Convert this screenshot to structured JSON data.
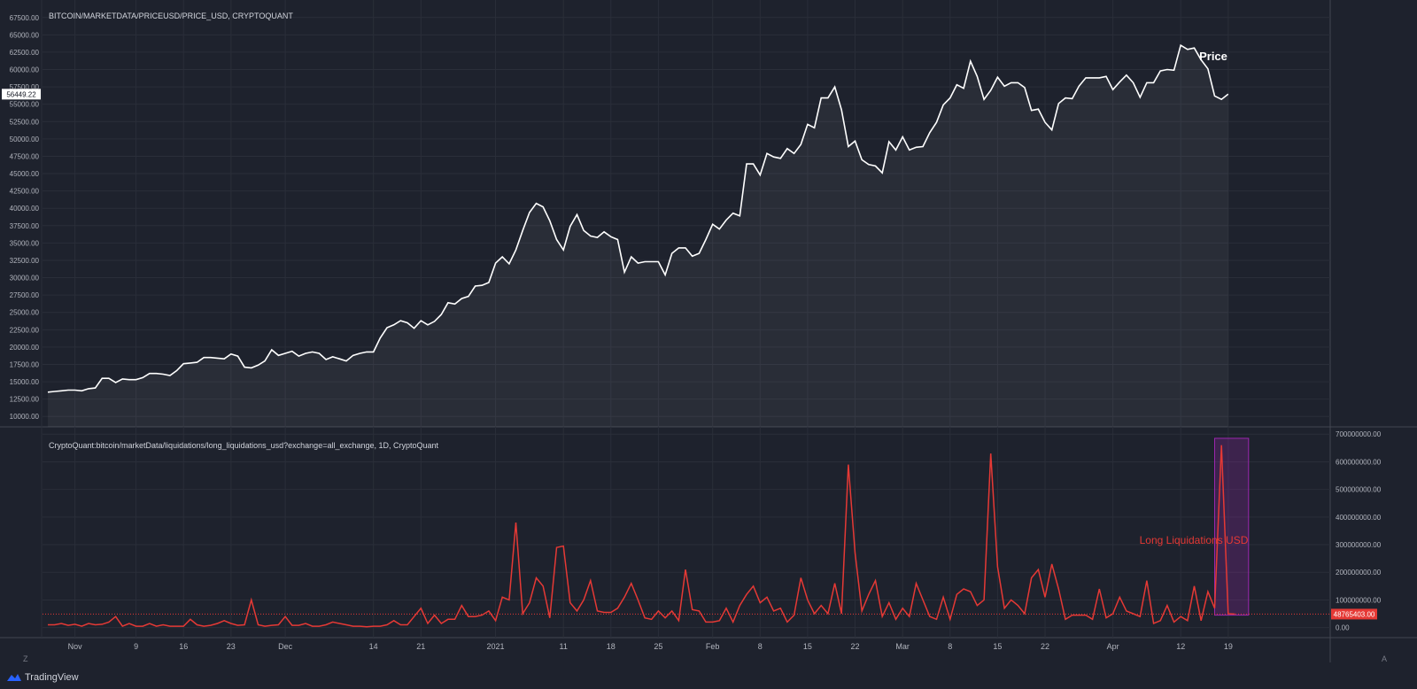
{
  "branding": {
    "name": "TradingView"
  },
  "controls": {
    "timezone_label": "Z",
    "auto_scale_label": "A"
  },
  "x_axis": {
    "labels": [
      "Nov",
      "9",
      "16",
      "23",
      "Dec",
      "14",
      "21",
      "2021",
      "11",
      "18",
      "25",
      "Feb",
      "8",
      "15",
      "22",
      "Mar",
      "8",
      "15",
      "22",
      "Apr",
      "12",
      "19"
    ]
  },
  "colors": {
    "background": "#1e222d",
    "grid": "#2a2e39",
    "price": "#ffffff",
    "liquidations": "#e53935",
    "highlight": "#9c27b0"
  },
  "chart_data": [
    {
      "type": "line",
      "title": "BITCOIN/MARKETDATA/PRICEUSD/PRICE_USD, CRYPTOQUANT",
      "annotation": "Price",
      "last_value_label": "56449.22",
      "y_ticks": [
        "67500.00",
        "65000.00",
        "62500.00",
        "60000.00",
        "57500.00",
        "55000.00",
        "52500.00",
        "50000.00",
        "47500.00",
        "45000.00",
        "42500.00",
        "40000.00",
        "37500.00",
        "35000.00",
        "32500.00",
        "30000.00",
        "27500.00",
        "25000.00",
        "22500.00",
        "20000.00",
        "17500.00",
        "15000.00",
        "12500.00",
        "10000.00"
      ],
      "ylim": [
        8500,
        69000
      ],
      "grid": true,
      "series": [
        {
          "x_start": "2020-10-27",
          "x_step_days": 1,
          "values": [
            13500,
            13600,
            13700,
            13800,
            13800,
            13700,
            14000,
            14100,
            15500,
            15500,
            14900,
            15400,
            15300,
            15300,
            15600,
            16200,
            16200,
            16100,
            15900,
            16600,
            17600,
            17700,
            17800,
            18500,
            18500,
            18400,
            18300,
            19000,
            18700,
            17100,
            17000,
            17400,
            18000,
            19600,
            18800,
            19100,
            19400,
            18700,
            19100,
            19300,
            19100,
            18200,
            18600,
            18300,
            18000,
            18800,
            19100,
            19300,
            19300,
            21300,
            22800,
            23200,
            23800,
            23500,
            22700,
            23800,
            23200,
            23700,
            24700,
            26400,
            26200,
            27000,
            27300,
            28800,
            28900,
            29300,
            32100,
            33000,
            32000,
            34000,
            36800,
            39400,
            40700,
            40200,
            38200,
            35500,
            34000,
            37400,
            39100,
            36800,
            36000,
            35800,
            36600,
            35900,
            35500,
            30800,
            33000,
            32100,
            32300,
            32300,
            32300,
            30400,
            33500,
            34300,
            34300,
            33100,
            33500,
            35500,
            37700,
            37000,
            38300,
            39300,
            38900,
            46400,
            46400,
            44800,
            47900,
            47400,
            47200,
            48600,
            47900,
            49200,
            52100,
            51600,
            55900,
            55900,
            57500,
            54200,
            48900,
            49700,
            47000,
            46300,
            46100,
            45100,
            49600,
            48400,
            50300,
            48400,
            48800,
            48900,
            50900,
            52400,
            54900,
            55900,
            57800,
            57300,
            61200,
            59000,
            55700,
            57000,
            58900,
            57600,
            58100,
            58100,
            57400,
            54100,
            54300,
            52400,
            51300,
            55100,
            55900,
            55800,
            57600,
            58800,
            58800,
            58800,
            59000,
            57100,
            58200,
            59200,
            58100,
            56000,
            58100,
            58100,
            59800,
            60000,
            59900,
            63500,
            62900,
            63100,
            61400,
            60100,
            56200,
            55700,
            56449
          ]
        }
      ]
    },
    {
      "type": "line",
      "title": "CryptoQuant:bitcoin/marketData/liquidations/long_liquidations_usd?exchange=all_exchange, 1D, CryptoQuant",
      "annotation": "Long Liquidations USD",
      "last_value_label": "48765403.00",
      "y_ticks": [
        "700000000.00",
        "600000000.00",
        "500000000.00",
        "400000000.00",
        "300000000.00",
        "200000000.00",
        "100000000.00",
        "0.00"
      ],
      "ylim": [
        -30000000,
        720000000
      ],
      "grid": true,
      "highlight_range": {
        "from_day": 172,
        "to_day": 177,
        "ylim": [
          45000000,
          685000000
        ]
      },
      "series": [
        {
          "x_start": "2020-10-27",
          "x_step_days": 1,
          "values": [
            10000000,
            10000000,
            15000000,
            8000000,
            12000000,
            5000000,
            15000000,
            10000000,
            12000000,
            20000000,
            40000000,
            5000000,
            15000000,
            5000000,
            5000000,
            15000000,
            5000000,
            10000000,
            5000000,
            5000000,
            5000000,
            30000000,
            10000000,
            5000000,
            8000000,
            15000000,
            25000000,
            15000000,
            8000000,
            10000000,
            100000000,
            10000000,
            5000000,
            8000000,
            10000000,
            40000000,
            8000000,
            8000000,
            15000000,
            5000000,
            5000000,
            10000000,
            20000000,
            15000000,
            10000000,
            5000000,
            5000000,
            3000000,
            5000000,
            5000000,
            10000000,
            25000000,
            10000000,
            10000000,
            40000000,
            70000000,
            15000000,
            45000000,
            15000000,
            30000000,
            30000000,
            80000000,
            40000000,
            40000000,
            45000000,
            60000000,
            25000000,
            110000000,
            100000000,
            380000000,
            50000000,
            90000000,
            180000000,
            150000000,
            35000000,
            290000000,
            295000000,
            90000000,
            60000000,
            100000000,
            170000000,
            60000000,
            55000000,
            55000000,
            70000000,
            110000000,
            160000000,
            100000000,
            35000000,
            30000000,
            60000000,
            35000000,
            60000000,
            25000000,
            210000000,
            65000000,
            60000000,
            20000000,
            20000000,
            25000000,
            70000000,
            20000000,
            80000000,
            120000000,
            150000000,
            90000000,
            110000000,
            60000000,
            70000000,
            20000000,
            45000000,
            180000000,
            100000000,
            50000000,
            80000000,
            50000000,
            160000000,
            50000000,
            590000000,
            270000000,
            60000000,
            120000000,
            170000000,
            40000000,
            90000000,
            30000000,
            70000000,
            40000000,
            160000000,
            100000000,
            40000000,
            30000000,
            110000000,
            30000000,
            120000000,
            140000000,
            130000000,
            80000000,
            100000000,
            630000000,
            220000000,
            70000000,
            100000000,
            80000000,
            50000000,
            180000000,
            210000000,
            110000000,
            230000000,
            140000000,
            30000000,
            45000000,
            45000000,
            45000000,
            30000000,
            140000000,
            35000000,
            50000000,
            110000000,
            60000000,
            50000000,
            40000000,
            170000000,
            15000000,
            25000000,
            80000000,
            20000000,
            40000000,
            25000000,
            150000000,
            25000000,
            130000000,
            70000000,
            660000000,
            50000000,
            48765403
          ]
        }
      ]
    }
  ]
}
